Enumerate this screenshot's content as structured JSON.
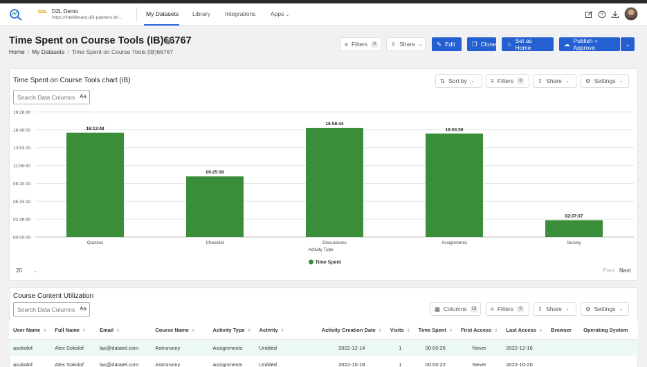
{
  "header": {
    "brand_badge": "D2L",
    "brand_title": "D2L Demo",
    "brand_url": "https://intelliboard.d2l-partners.bri...",
    "nav": [
      {
        "label": "My Datasets"
      },
      {
        "label": "Library"
      },
      {
        "label": "Integrations"
      },
      {
        "label": "Apps"
      }
    ],
    "icons": [
      "edit-icon",
      "help-circle-icon",
      "download-icon",
      "user-avatar"
    ]
  },
  "page": {
    "title": "Time Spent on Course Tools (IB)66767",
    "breadcrumb": [
      "Home",
      "My Datasets",
      "Time Spent on Course Tools (IB)66767"
    ]
  },
  "toolbar": {
    "filters_label": "Filters",
    "filters_count": "0",
    "share_label": "Share",
    "edit_label": "Edit",
    "clone_label": "Clone",
    "set_home_label": "Set as Home",
    "publish_label": "Publish + Approve"
  },
  "chart_card": {
    "title": "Time Spent on Course Tools chart (IB)",
    "search_placeholder": "Search Data Columns",
    "case_toggle": "Aa",
    "sort_label": "Sort by",
    "filters_label": "Filters",
    "filters_count": "0",
    "share_label": "Share",
    "settings_label": "Settings",
    "page_size": "20",
    "prev_label": "Prev",
    "next_label": "Next"
  },
  "chart_data": {
    "type": "bar",
    "categories": [
      "Quizzes",
      "Checklist",
      "Discussions",
      "Assignments",
      "Survey"
    ],
    "series": [
      {
        "name": "Time Spent",
        "values": [
          58428,
          33939,
          61124,
          57890,
          9457
        ],
        "labels": [
          "16:13:48",
          "09:25:39",
          "16:58:44",
          "16:04:50",
          "02:37:37"
        ]
      }
    ],
    "xlabel": "Activity Type",
    "ylabel": "",
    "ylim": [
      0,
      70000
    ],
    "yticks": [
      0,
      10000,
      20000,
      30000,
      40000,
      50000,
      60000,
      70000
    ],
    "ytick_labels": [
      "00:00:00",
      "02:46:40",
      "05:33:20",
      "08:20:00",
      "11:06:40",
      "13:53:20",
      "16:40:00",
      "19:26:40"
    ],
    "grid": true,
    "legend": "bottom-center",
    "bar_color": "#3a8e3a"
  },
  "table_card": {
    "title": "Course Content Utilization",
    "search_placeholder": "Search Data Columns",
    "case_toggle": "Aa",
    "columns_label": "Columns",
    "columns_count": "13",
    "filters_label": "Filters",
    "filters_count": "0",
    "share_label": "Share",
    "settings_label": "Settings",
    "headers": [
      "User Name",
      "Full Name",
      "Email",
      "Course Name",
      "Activity Type",
      "Activity",
      "Activity Creation Date",
      "Visits",
      "Time Spent",
      "First Access",
      "Last Access",
      "Browser",
      "Operating System"
    ],
    "rows": [
      [
        "asokolof",
        "Alex Sokolof",
        "las@datatel.com",
        "Astronomy",
        "Assignments",
        "Untitled",
        "2022-12-14",
        "1",
        "00:00:26",
        "Never",
        "2022-12-16",
        "",
        ""
      ],
      [
        "asokolof",
        "Alex Sokolof",
        "las@datatel.com",
        "Astronomy",
        "Assignments",
        "Untitled",
        "2022-10-18",
        "1",
        "00:00:22",
        "Never",
        "2022-10-20",
        "",
        ""
      ]
    ]
  }
}
